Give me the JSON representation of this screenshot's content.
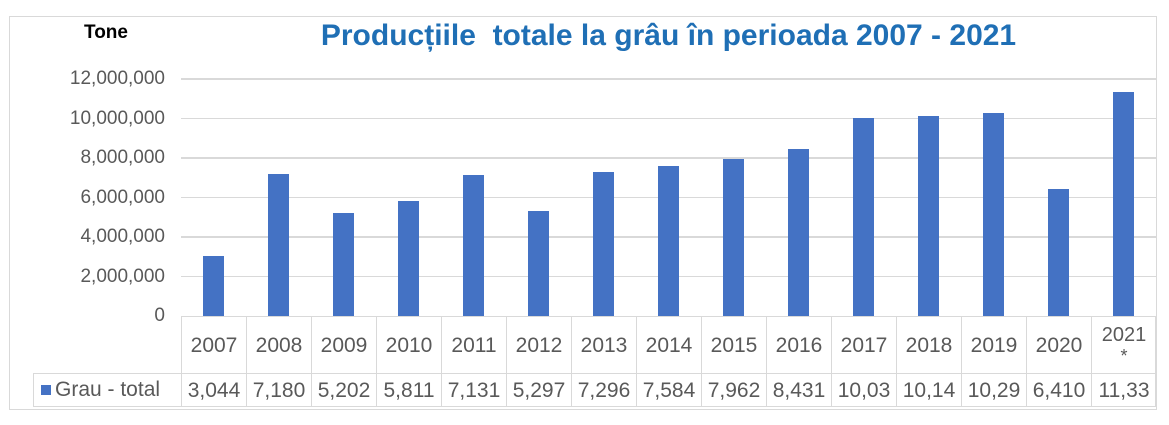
{
  "chart_data": {
    "type": "bar",
    "title": "Producțiile  totale la grâu în perioada 2007 - 2021",
    "ylabel": "Tone",
    "xlabel": "",
    "ylim": [
      0,
      12000000
    ],
    "yticks": [
      "0",
      "2,000,000",
      "4,000,000",
      "6,000,000",
      "8,000,000",
      "10,000,000",
      "12,000,000"
    ],
    "grid": true,
    "legend_position": "data-table",
    "categories": [
      "2007",
      "2008",
      "2009",
      "2010",
      "2011",
      "2012",
      "2013",
      "2014",
      "2015",
      "2016",
      "2017",
      "2018",
      "2019",
      "2020",
      "2021*"
    ],
    "series": [
      {
        "name": "Grau - total",
        "color": "#4472c4",
        "values": [
          3044000,
          7180000,
          5202000,
          5811000,
          7131000,
          5297000,
          7296000,
          7584000,
          7962000,
          8431000,
          10030000,
          10140000,
          10290000,
          6410000,
          11330000
        ],
        "table_labels": [
          "3,044",
          "7,180",
          "5,202",
          "5,811",
          "7,131",
          "5,297",
          "7,296",
          "7,584",
          "7,962",
          "8,431",
          "10,03",
          "10,14",
          "10,29",
          "6,410",
          "11,33"
        ]
      }
    ]
  },
  "header": {
    "unit_label": "Tone",
    "title": "Producțiile  totale la grâu în perioada 2007 - 2021"
  },
  "table": {
    "legend_label": "Grau - total",
    "years": [
      "2007",
      "2008",
      "2009",
      "2010",
      "2011",
      "2012",
      "2013",
      "2014",
      "2015",
      "2016",
      "2017",
      "2018",
      "2019",
      "2020"
    ],
    "last_year": "2021",
    "last_year_mark": "*",
    "values": [
      "3,044",
      "7,180",
      "5,202",
      "5,811",
      "7,131",
      "5,297",
      "7,296",
      "7,584",
      "7,962",
      "8,431",
      "10,03",
      "10,14",
      "10,29",
      "6,410",
      "11,33"
    ]
  },
  "colors": {
    "bar": "#4472c4",
    "title": "#1f6fb5",
    "grid": "#d9d9d9",
    "text": "#595959"
  }
}
